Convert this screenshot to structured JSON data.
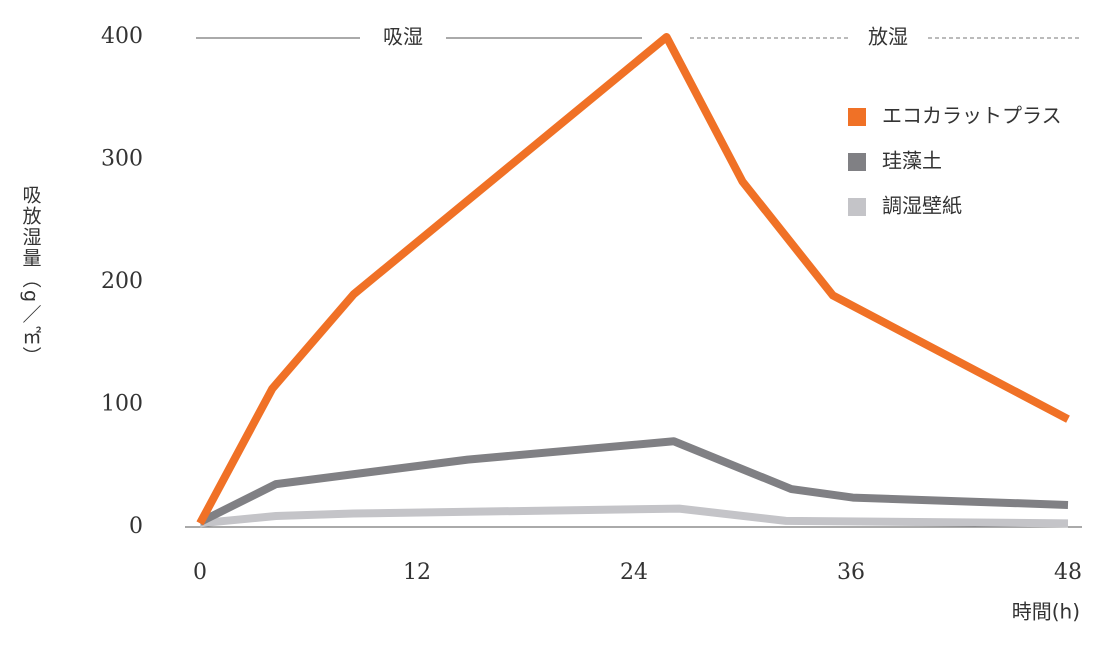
{
  "chart_data": {
    "type": "line",
    "y_label": "吸放湿量（g／㎡）",
    "x_label": "時間(h)",
    "phases": [
      "吸湿",
      "放湿"
    ],
    "xlim": [
      0,
      48
    ],
    "xticks": [
      0,
      12,
      24,
      36,
      48
    ],
    "ylim": [
      0,
      400
    ],
    "yticks": [
      0,
      100,
      200,
      300,
      400
    ],
    "grid": false,
    "legend": "upper right",
    "series": [
      {
        "name": "エコカラットプラス",
        "color": "#f07126",
        "x": [
          0,
          4,
          8.5,
          25.8,
          30,
          35,
          48
        ],
        "values": [
          3,
          113,
          190,
          400,
          282,
          189,
          88
        ]
      },
      {
        "name": "珪藻土",
        "color": "#808084",
        "x": [
          0,
          4.2,
          14.8,
          26.2,
          32.7,
          36.1,
          48
        ],
        "values": [
          4,
          35,
          55,
          70,
          31,
          24,
          18
        ]
      },
      {
        "name": "調湿壁紙",
        "color": "#c4c4c8",
        "x": [
          0,
          4.2,
          8.5,
          26.5,
          32.4,
          48
        ],
        "values": [
          3,
          9,
          11,
          15,
          5,
          3
        ]
      }
    ]
  }
}
